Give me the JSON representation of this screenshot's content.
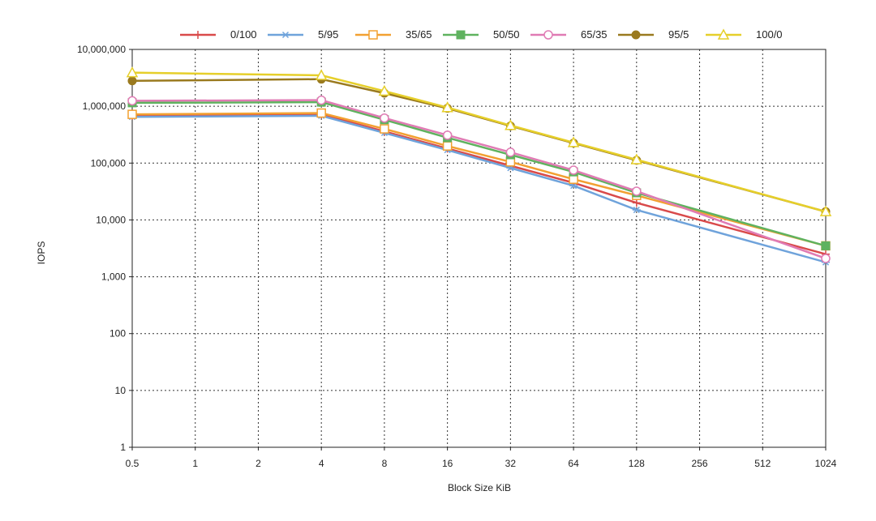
{
  "chart_data": {
    "type": "line",
    "x": [
      0.5,
      1,
      2,
      4,
      8,
      16,
      32,
      64,
      128,
      256,
      512,
      1024
    ],
    "x_tick_labels": [
      "0.5",
      "1",
      "2",
      "4",
      "8",
      "16",
      "32",
      "64",
      "128",
      "256",
      "512",
      "1024"
    ],
    "y_tick_values": [
      1,
      10,
      100,
      1000,
      10000,
      100000,
      1000000,
      10000000
    ],
    "y_tick_labels": [
      "1",
      "10",
      "100",
      "1,000",
      "10,000",
      "100,000",
      "1,000,000",
      "10,000,000"
    ],
    "xlabel": "Block Size KiB",
    "ylabel": "IOPS",
    "y_scale": "log",
    "ylim": [
      1,
      10000000
    ],
    "grid": true,
    "legend_position": "top",
    "series": [
      {
        "name": "0/100",
        "color": "#d94a4a",
        "marker": "plus",
        "x": [
          0.5,
          4,
          8,
          16,
          32,
          64,
          128,
          1024
        ],
        "values": [
          680000,
          720000,
          360000,
          180000,
          90000,
          45000,
          20000,
          2500
        ]
      },
      {
        "name": "5/95",
        "color": "#6fa3db",
        "marker": "asterisk",
        "x": [
          0.5,
          4,
          8,
          16,
          32,
          64,
          128,
          1024
        ],
        "values": [
          650000,
          680000,
          340000,
          170000,
          82000,
          40000,
          15000,
          1800
        ]
      },
      {
        "name": "35/65",
        "color": "#f2a031",
        "marker": "square-open",
        "x": [
          0.5,
          4,
          8,
          16,
          32,
          64,
          128,
          1024
        ],
        "values": [
          720000,
          760000,
          400000,
          200000,
          105000,
          52000,
          27000,
          3500
        ]
      },
      {
        "name": "50/50",
        "color": "#5fb25f",
        "marker": "square-filled",
        "x": [
          0.5,
          4,
          8,
          16,
          32,
          64,
          128,
          1024
        ],
        "values": [
          1150000,
          1180000,
          580000,
          280000,
          140000,
          70000,
          30000,
          3500
        ]
      },
      {
        "name": "65/35",
        "color": "#e07bb4",
        "marker": "circle-open",
        "x": [
          0.5,
          4,
          8,
          16,
          32,
          64,
          128,
          1024
        ],
        "values": [
          1250000,
          1280000,
          620000,
          310000,
          155000,
          75000,
          32000,
          2100
        ]
      },
      {
        "name": "95/5",
        "color": "#9a7a1f",
        "marker": "circle-filled",
        "x": [
          0.5,
          4,
          8,
          16,
          32,
          64,
          128,
          1024
        ],
        "values": [
          2800000,
          3000000,
          1700000,
          920000,
          450000,
          225000,
          112000,
          14000
        ]
      },
      {
        "name": "100/0",
        "color": "#e6cf2a",
        "marker": "triangle-open",
        "x": [
          0.5,
          4,
          8,
          16,
          32,
          64,
          128,
          1024
        ],
        "values": [
          3900000,
          3500000,
          1850000,
          950000,
          460000,
          230000,
          115000,
          14000
        ]
      }
    ]
  }
}
